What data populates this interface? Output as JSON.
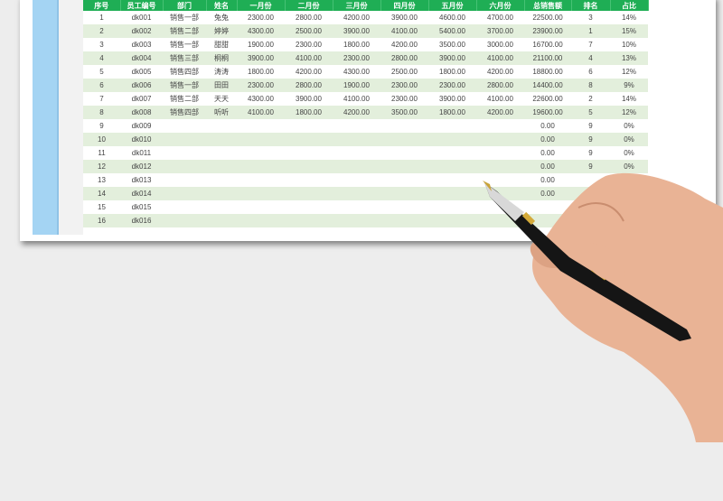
{
  "table": {
    "headers": [
      "序号",
      "员工编号",
      "部门",
      "姓名",
      "一月份",
      "二月份",
      "三月份",
      "四月份",
      "五月份",
      "六月份",
      "总销售额",
      "排名",
      "占比"
    ],
    "rows": [
      [
        "1",
        "dk001",
        "销售一部",
        "兔兔",
        "2300.00",
        "2800.00",
        "4200.00",
        "3900.00",
        "4600.00",
        "4700.00",
        "22500.00",
        "3",
        "14%"
      ],
      [
        "2",
        "dk002",
        "销售二部",
        "婷婷",
        "4300.00",
        "2500.00",
        "3900.00",
        "4100.00",
        "5400.00",
        "3700.00",
        "23900.00",
        "1",
        "15%"
      ],
      [
        "3",
        "dk003",
        "销售一部",
        "甜甜",
        "1900.00",
        "2300.00",
        "1800.00",
        "4200.00",
        "3500.00",
        "3000.00",
        "16700.00",
        "7",
        "10%"
      ],
      [
        "4",
        "dk004",
        "销售三部",
        "桐桐",
        "3900.00",
        "4100.00",
        "2300.00",
        "2800.00",
        "3900.00",
        "4100.00",
        "21100.00",
        "4",
        "13%"
      ],
      [
        "5",
        "dk005",
        "销售四部",
        "涛涛",
        "1800.00",
        "4200.00",
        "4300.00",
        "2500.00",
        "1800.00",
        "4200.00",
        "18800.00",
        "6",
        "12%"
      ],
      [
        "6",
        "dk006",
        "销售一部",
        "田田",
        "2300.00",
        "2800.00",
        "1900.00",
        "2300.00",
        "2300.00",
        "2800.00",
        "14400.00",
        "8",
        "9%"
      ],
      [
        "7",
        "dk007",
        "销售二部",
        "天天",
        "4300.00",
        "3900.00",
        "4100.00",
        "2300.00",
        "3900.00",
        "4100.00",
        "22600.00",
        "2",
        "14%"
      ],
      [
        "8",
        "dk008",
        "销售四部",
        "听听",
        "4100.00",
        "1800.00",
        "4200.00",
        "3500.00",
        "1800.00",
        "4200.00",
        "19600.00",
        "5",
        "12%"
      ],
      [
        "9",
        "dk009",
        "",
        "",
        "",
        "",
        "",
        "",
        "",
        "",
        "0.00",
        "9",
        "0%"
      ],
      [
        "10",
        "dk010",
        "",
        "",
        "",
        "",
        "",
        "",
        "",
        "",
        "0.00",
        "9",
        "0%"
      ],
      [
        "11",
        "dk011",
        "",
        "",
        "",
        "",
        "",
        "",
        "",
        "",
        "0.00",
        "9",
        "0%"
      ],
      [
        "12",
        "dk012",
        "",
        "",
        "",
        "",
        "",
        "",
        "",
        "",
        "0.00",
        "9",
        "0%"
      ],
      [
        "13",
        "dk013",
        "",
        "",
        "",
        "",
        "",
        "",
        "",
        "",
        "0.00",
        "",
        ""
      ],
      [
        "14",
        "dk014",
        "",
        "",
        "",
        "",
        "",
        "",
        "",
        "",
        "0.00",
        "",
        ""
      ],
      [
        "15",
        "dk015",
        "",
        "",
        "",
        "",
        "",
        "",
        "",
        "",
        "",
        "",
        ""
      ],
      [
        "16",
        "dk016",
        "",
        "",
        "",
        "",
        "",
        "",
        "",
        "",
        "",
        "",
        ""
      ]
    ]
  },
  "colors": {
    "header": "#1fae55",
    "alt_row": "#e3efdc",
    "side_strip": "#a4d4f3"
  }
}
